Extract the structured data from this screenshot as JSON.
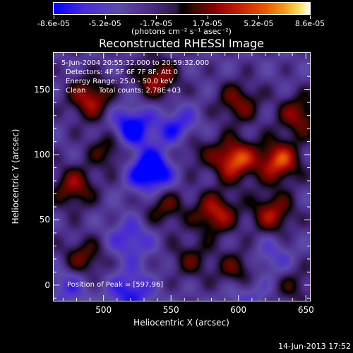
{
  "colorbar": {
    "ticks": [
      "-8.6e-05",
      "-5.2e-05",
      "-1.7e-05",
      "1.7e-05",
      "5.2e-05",
      "8.6e-05"
    ],
    "units": "(photons cm⁻² s⁻¹ asec⁻²)"
  },
  "annotations": {
    "time_range": "5-Jun-2004 20:55:32.000 to 20:59:32.000",
    "detectors": "Detectors: 4F 5F 6F 7F 8F, Att 0",
    "energy": "Energy Range: 25.0 - 50.0 keV",
    "clean": "Clean",
    "total_counts": "Total counts: 2.78E+03",
    "peak": "Position of Peak = [597,96]"
  },
  "timestamp": "14-Jun-2013 17:52",
  "chart_data": {
    "type": "heatmap",
    "title": "Reconstructed RHESSI Image",
    "xlabel": "Heliocentric X (arcsec)",
    "ylabel": "Heliocentric Y (arcsec)",
    "xlim": [
      463,
      653
    ],
    "ylim": [
      -12,
      178
    ],
    "xticks": [
      500,
      550,
      600,
      650
    ],
    "yticks": [
      0,
      50,
      100,
      150
    ],
    "zlim": [
      -8.6e-05,
      8.6e-05
    ],
    "colormap": "blue-purple-black-red-yellow-white",
    "peak_position": [
      597,
      96
    ],
    "peak_value": 8.6e-05,
    "sources": [
      {
        "x": 490,
        "y": 143,
        "value": 6.5e-05
      },
      {
        "x": 540,
        "y": 158,
        "value": 5.8e-05
      },
      {
        "x": 505,
        "y": 105,
        "value": 4.5e-05
      },
      {
        "x": 478,
        "y": 75,
        "value": 5.5e-05
      },
      {
        "x": 485,
        "y": 20,
        "value": 4.8e-05
      },
      {
        "x": 545,
        "y": 60,
        "value": 4.2e-05
      },
      {
        "x": 565,
        "y": 105,
        "value": 3.2e-05
      },
      {
        "x": 583,
        "y": 55,
        "value": 6.8e-05
      },
      {
        "x": 600,
        "y": 140,
        "value": 5e-05
      },
      {
        "x": 597,
        "y": 96,
        "value": 8.6e-05
      },
      {
        "x": 630,
        "y": 95,
        "value": 8e-05
      },
      {
        "x": 625,
        "y": 55,
        "value": 6e-05
      },
      {
        "x": 645,
        "y": 130,
        "value": 5.5e-05
      },
      {
        "x": 600,
        "y": 10,
        "value": 5e-05
      },
      {
        "x": 565,
        "y": 20,
        "value": 3.5e-05
      },
      {
        "x": 640,
        "y": 0,
        "value": 3e-05
      },
      {
        "x": 520,
        "y": 35,
        "value": -4e-05
      },
      {
        "x": 535,
        "y": 87,
        "value": -8.6e-05
      },
      {
        "x": 520,
        "y": 120,
        "value": -7e-05
      },
      {
        "x": 555,
        "y": 120,
        "value": -5e-05
      },
      {
        "x": 520,
        "y": -5,
        "value": -5e-05
      },
      {
        "x": 475,
        "y": 0,
        "value": -3.5e-05
      },
      {
        "x": 625,
        "y": 20,
        "value": -3e-05
      },
      {
        "x": 605,
        "y": -5,
        "value": -3.5e-05
      }
    ]
  }
}
